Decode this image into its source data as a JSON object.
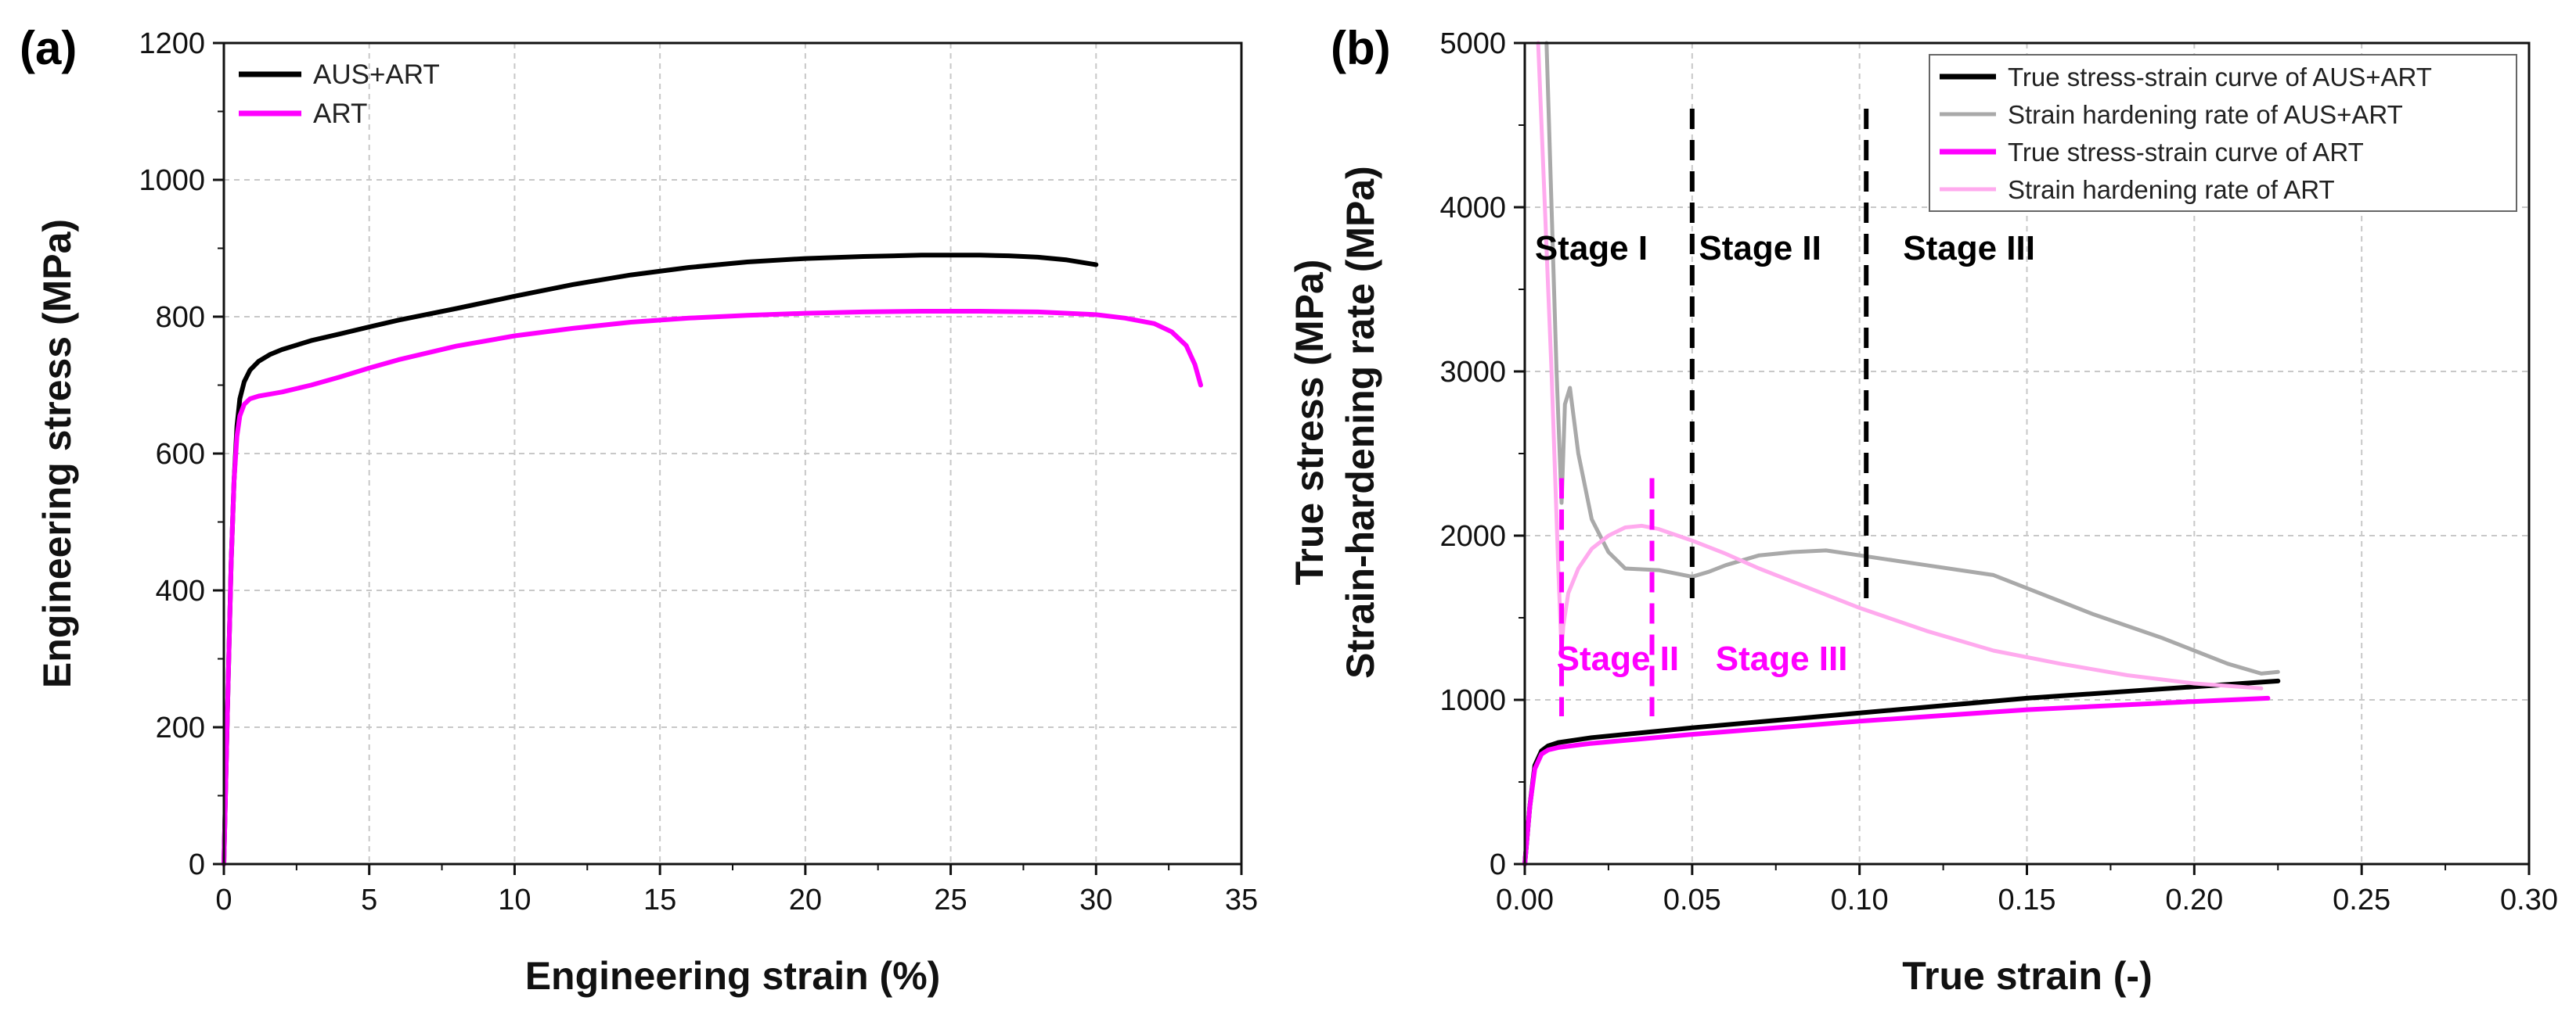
{
  "chart_data": [
    {
      "type": "line",
      "panel_label": "(a)",
      "xlabel": "Engineering strain (%)",
      "ylabel": "Engineering stress (MPa)",
      "xlim": [
        0,
        35
      ],
      "ylim": [
        0,
        1200
      ],
      "xticks": [
        0,
        5,
        10,
        15,
        20,
        25,
        30,
        35
      ],
      "yticks": [
        0,
        200,
        400,
        600,
        800,
        1000,
        1200
      ],
      "xtick_labels": [
        "0",
        "5",
        "10",
        "15",
        "20",
        "25",
        "30",
        "35"
      ],
      "ytick_labels": [
        "0",
        "200",
        "400",
        "600",
        "800",
        "1000",
        "1200"
      ],
      "grid": true,
      "legend": "top-left",
      "series": [
        {
          "name": "AUS+ART",
          "color": "#000000",
          "x": [
            0,
            0.12,
            0.25,
            0.35,
            0.45,
            0.55,
            0.7,
            0.9,
            1.2,
            1.6,
            2,
            3,
            4,
            5,
            6,
            8,
            10,
            12,
            14,
            16,
            18,
            20,
            22,
            24,
            26,
            27,
            28,
            29,
            30
          ],
          "y": [
            0,
            220,
            440,
            560,
            640,
            680,
            705,
            722,
            735,
            745,
            752,
            765,
            775,
            785,
            795,
            812,
            830,
            847,
            861,
            872,
            880,
            885,
            888,
            890,
            890,
            889,
            887,
            883,
            876
          ]
        },
        {
          "name": "ART",
          "color": "#ff00ff",
          "x": [
            0,
            0.12,
            0.25,
            0.35,
            0.45,
            0.55,
            0.7,
            0.9,
            1.2,
            1.6,
            2,
            3,
            4,
            5,
            6,
            8,
            10,
            12,
            14,
            16,
            18,
            20,
            22,
            24,
            26,
            28,
            30,
            31,
            32,
            32.6,
            33.1,
            33.4,
            33.6
          ],
          "y": [
            0,
            220,
            440,
            560,
            625,
            655,
            672,
            680,
            684,
            687,
            690,
            700,
            712,
            725,
            737,
            757,
            772,
            783,
            792,
            798,
            802,
            805,
            807,
            808,
            808,
            807,
            803,
            798,
            790,
            778,
            758,
            730,
            700
          ]
        }
      ]
    },
    {
      "type": "line",
      "panel_label": "(b)",
      "xlabel": "True strain (-)",
      "ylabel": "True stress (MPa)",
      "ylabel2": "Strain-hardening rate (MPa)",
      "xlim": [
        0,
        0.3
      ],
      "ylim": [
        0,
        5000
      ],
      "xticks": [
        0,
        0.05,
        0.1,
        0.15,
        0.2,
        0.25,
        0.3
      ],
      "yticks": [
        0,
        1000,
        2000,
        3000,
        4000,
        5000
      ],
      "xtick_labels": [
        "0.00",
        "0.05",
        "0.10",
        "0.15",
        "0.20",
        "0.25",
        "0.30"
      ],
      "ytick_labels": [
        "0",
        "1000",
        "2000",
        "3000",
        "4000",
        "5000"
      ],
      "grid": true,
      "legend": "top-right",
      "series": [
        {
          "name": "True stress-strain curve of AUS+ART",
          "color": "#000000",
          "x": [
            0,
            0.0015,
            0.003,
            0.005,
            0.007,
            0.01,
            0.02,
            0.05,
            0.1,
            0.15,
            0.2,
            0.225
          ],
          "y": [
            0,
            350,
            600,
            690,
            720,
            740,
            770,
            830,
            920,
            1010,
            1080,
            1115
          ]
        },
        {
          "name": "Strain hardening rate of AUS+ART",
          "color": "#a9a9a9",
          "x": [
            0.0065,
            0.008,
            0.0095,
            0.011,
            0.0115,
            0.012,
            0.0135,
            0.016,
            0.02,
            0.025,
            0.03,
            0.04,
            0.05,
            0.055,
            0.06,
            0.07,
            0.08,
            0.09,
            0.1,
            0.11,
            0.12,
            0.13,
            0.14,
            0.15,
            0.16,
            0.17,
            0.18,
            0.19,
            0.2,
            0.21,
            0.22,
            0.225
          ],
          "y": [
            5000,
            4000,
            3000,
            2200,
            2500,
            2800,
            2900,
            2500,
            2100,
            1900,
            1800,
            1790,
            1750,
            1780,
            1820,
            1880,
            1900,
            1910,
            1880,
            1850,
            1820,
            1790,
            1760,
            1680,
            1600,
            1520,
            1450,
            1380,
            1300,
            1220,
            1160,
            1170
          ]
        },
        {
          "name": "True stress-strain curve of ART",
          "color": "#ff00ff",
          "x": [
            0,
            0.0015,
            0.003,
            0.005,
            0.007,
            0.01,
            0.02,
            0.05,
            0.1,
            0.15,
            0.2,
            0.222
          ],
          "y": [
            0,
            350,
            580,
            670,
            695,
            710,
            735,
            790,
            870,
            940,
            990,
            1010
          ]
        },
        {
          "name": "Strain hardening rate of ART",
          "color": "#ffaaee",
          "x": [
            0.004,
            0.005,
            0.006,
            0.007,
            0.008,
            0.009,
            0.01,
            0.011,
            0.0115,
            0.013,
            0.016,
            0.02,
            0.025,
            0.03,
            0.035,
            0.04,
            0.05,
            0.06,
            0.07,
            0.08,
            0.1,
            0.12,
            0.14,
            0.16,
            0.18,
            0.2,
            0.22
          ],
          "y": [
            5000,
            4500,
            4000,
            3500,
            3000,
            2400,
            1800,
            1300,
            1450,
            1650,
            1800,
            1920,
            2000,
            2050,
            2060,
            2040,
            1970,
            1890,
            1800,
            1720,
            1560,
            1420,
            1300,
            1220,
            1150,
            1100,
            1070
          ]
        }
      ],
      "markers": [
        {
          "x": 0.05,
          "y_from": 1600,
          "y_to": 4600,
          "color": "#000000"
        },
        {
          "x": 0.102,
          "y_from": 1600,
          "y_to": 4600,
          "color": "#000000"
        },
        {
          "x": 0.011,
          "y_from": 900,
          "y_to": 2350,
          "color": "#ff00ff"
        },
        {
          "x": 0.038,
          "y_from": 900,
          "y_to": 2350,
          "color": "#ff00ff"
        }
      ],
      "annotations": [
        {
          "text": "Stage I",
          "x": 0.003,
          "y": 3680,
          "color": "#000000"
        },
        {
          "text": "Stage II",
          "x": 0.052,
          "y": 3680,
          "color": "#000000"
        },
        {
          "text": "Stage III",
          "x": 0.113,
          "y": 3680,
          "color": "#000000"
        },
        {
          "text": "Stage II",
          "x": 0.0095,
          "y": 1180,
          "color": "#ff00ff"
        },
        {
          "text": "Stage III",
          "x": 0.057,
          "y": 1180,
          "color": "#ff00ff"
        }
      ]
    }
  ]
}
